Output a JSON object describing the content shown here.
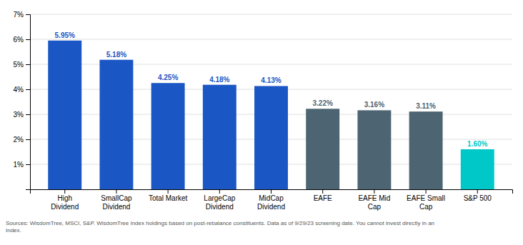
{
  "chart_data": {
    "type": "bar",
    "categories": [
      "High\nDividend",
      "SmallCap\nDividend",
      "Total Market",
      "LargeCap\nDividend",
      "MidCap\nDividend",
      "EAFE",
      "EAFE Mid\nCap",
      "EAFE Small\nCap",
      "S&P 500"
    ],
    "values": [
      5.95,
      5.18,
      4.25,
      4.18,
      4.13,
      3.22,
      3.16,
      3.11,
      1.6
    ],
    "value_labels": [
      "5.95%",
      "5.18%",
      "4.25%",
      "4.18%",
      "4.13%",
      "3.22%",
      "3.16%",
      "3.11%",
      "1.60%"
    ],
    "data_labels": true,
    "colors": [
      "#1a56c4",
      "#1a56c4",
      "#1a56c4",
      "#1a56c4",
      "#1a56c4",
      "#4d6472",
      "#4d6472",
      "#4d6472",
      "#00c8c8"
    ],
    "ylim": [
      0,
      7
    ],
    "yticks": [
      {
        "value": 1,
        "label": "1%"
      },
      {
        "value": 2,
        "label": "2%"
      },
      {
        "value": 3,
        "label": "3%"
      },
      {
        "value": 4,
        "label": "4%"
      },
      {
        "value": 5,
        "label": "5%"
      },
      {
        "value": 6,
        "label": "6%"
      },
      {
        "value": 7,
        "label": "7%"
      }
    ],
    "grid": true,
    "annotations": [
      "Sources: WisdomTree, MSCI, S&P. WisdomTree Index holdings based on post-rebalance constituents. Data as of 9/29/23 screening date. You cannot invest directly in an\nIndex."
    ]
  }
}
